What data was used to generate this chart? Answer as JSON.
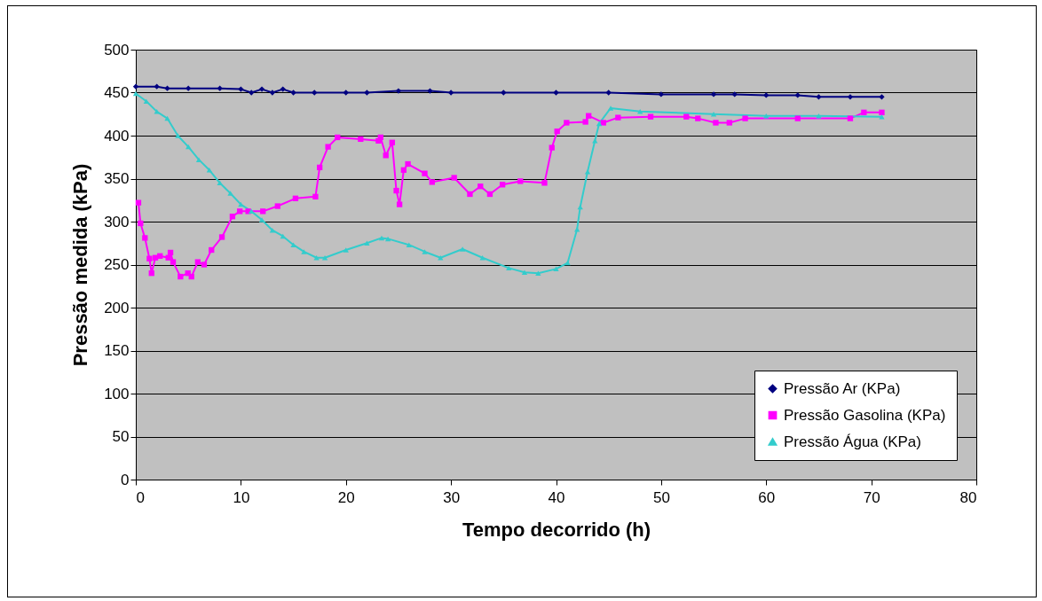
{
  "chart_data": {
    "type": "line",
    "xlabel": "Tempo decorrido (h)",
    "ylabel": "Pressão medida (kPa)",
    "xlim": [
      0,
      80
    ],
    "xticks": [
      0,
      10,
      20,
      30,
      40,
      50,
      60,
      70,
      80
    ],
    "ylim": [
      0,
      500
    ],
    "yticks": [
      0,
      50,
      100,
      150,
      200,
      250,
      300,
      350,
      400,
      450,
      500
    ],
    "grid": "y",
    "legend": "bottom right",
    "series": [
      {
        "name": "Pressão Ar (KPa)",
        "color": "#000080",
        "marker": "diamond",
        "x": [
          0,
          2,
          3,
          5,
          8,
          10,
          11,
          12,
          13,
          14,
          15,
          17,
          20,
          22,
          25,
          28,
          30,
          35,
          40,
          45,
          50,
          55,
          57,
          60,
          63,
          65,
          68,
          71
        ],
        "values": [
          457,
          457,
          455,
          455,
          455,
          454,
          450,
          454,
          450,
          454,
          450,
          450,
          450,
          450,
          452,
          452,
          450,
          450,
          450,
          450,
          448,
          448,
          448,
          447,
          447,
          445,
          445,
          445
        ]
      },
      {
        "name": "Pressão Gasolina (KPa)",
        "color": "#ff00ff",
        "marker": "square",
        "x": [
          0.25,
          0.45,
          0.87,
          1.3,
          1.5,
          1.86,
          2.3,
          3.1,
          3.3,
          3.55,
          4.25,
          4.96,
          5.3,
          5.9,
          6.5,
          7.2,
          8.2,
          9.2,
          9.9,
          10.7,
          12.1,
          13.5,
          15.2,
          17.1,
          17.5,
          18.3,
          19.2,
          21.4,
          23.1,
          23.3,
          23.8,
          24.4,
          24.8,
          25.1,
          25.5,
          25.9,
          27.5,
          28.2,
          30.3,
          31.8,
          32.8,
          33.7,
          34.9,
          36.6,
          38.9,
          39.6,
          40.1,
          41,
          42.8,
          43.1,
          44.5,
          45.9,
          49,
          52.4,
          53.5,
          55.2,
          56.5,
          58,
          63,
          68,
          69.3,
          71
        ],
        "values": [
          322,
          298,
          281,
          257,
          240,
          258,
          260,
          258,
          264,
          253,
          236,
          240,
          236,
          253,
          250,
          267,
          282,
          306,
          312,
          312,
          312,
          318,
          327,
          329,
          363,
          387,
          398,
          396,
          394,
          398,
          377,
          392,
          336,
          320,
          360,
          367,
          356,
          346,
          351,
          332,
          341,
          332,
          343,
          347,
          345,
          386,
          405,
          415,
          416,
          423,
          415,
          421,
          422,
          422,
          420,
          415,
          415,
          420,
          420,
          420,
          427,
          427
        ]
      },
      {
        "name": "Pressão Água (KPa)",
        "color": "#33cccc",
        "marker": "triangle",
        "x": [
          0,
          1,
          2,
          3,
          4,
          5,
          6,
          7,
          8,
          9,
          10,
          11,
          12,
          13,
          14,
          15,
          16,
          17.2,
          18,
          20,
          22,
          23.4,
          24,
          26,
          27.5,
          29,
          31.1,
          33,
          35.5,
          37,
          38.3,
          40,
          41.1,
          42,
          42.3,
          43,
          43.7,
          44.1,
          45.2,
          48,
          55,
          60,
          65,
          71
        ],
        "values": [
          449,
          440,
          428,
          420,
          400,
          387,
          372,
          360,
          345,
          333,
          320,
          312,
          302,
          290,
          283,
          273,
          265,
          258,
          258,
          267,
          275,
          281,
          280,
          273,
          265,
          258,
          268,
          258,
          246,
          241,
          240,
          245,
          252,
          291,
          317,
          358,
          394,
          414,
          432,
          428,
          425,
          423,
          423,
          422
        ]
      }
    ]
  }
}
